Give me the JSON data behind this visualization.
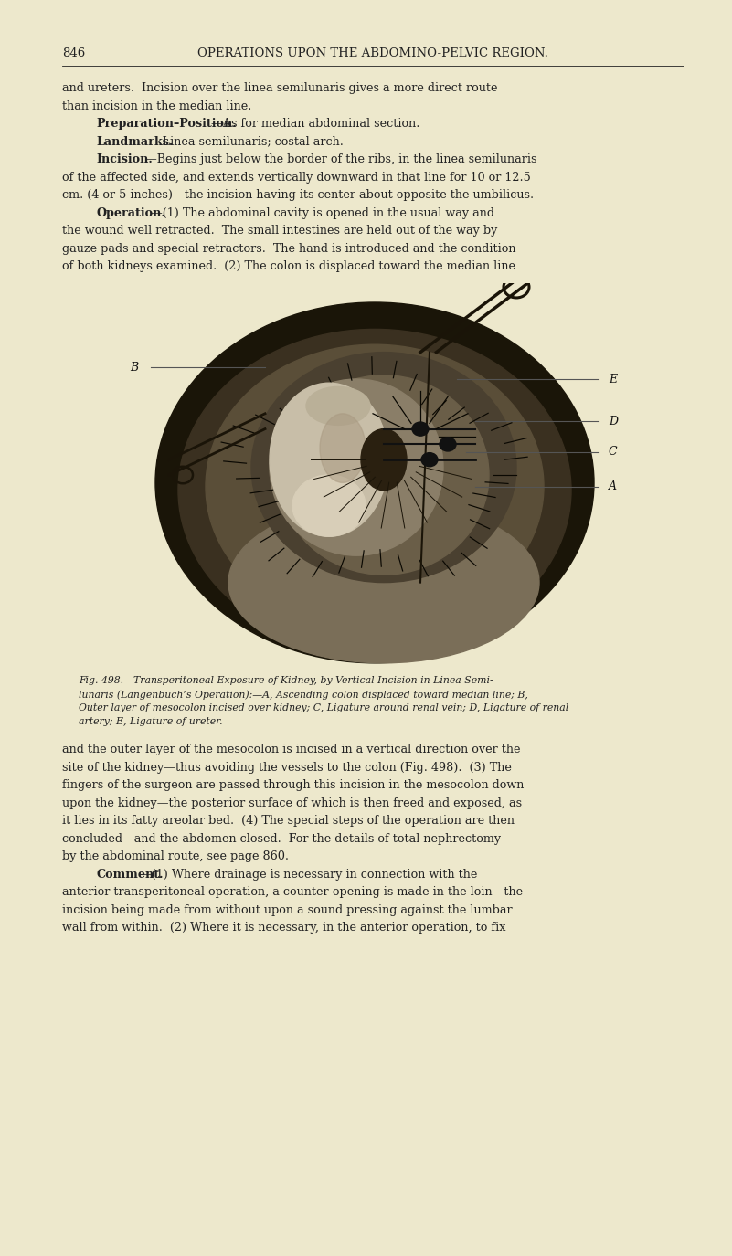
{
  "page_bg": "#ede8cc",
  "page_number": "846",
  "header_text": "OPERATIONS UPON THE ABDOMINO-PELVIC REGION.",
  "header_fontsize": 9.5,
  "body_fontsize": 9.2,
  "caption_fontsize": 7.8,
  "text_color": "#222222",
  "figsize": [
    8.01,
    13.75
  ],
  "dpi": 100,
  "top_text": [
    [
      "normal",
      "and ureters.  Incision over the linea semilunaris gives a more direct route"
    ],
    [
      "normal",
      "than incision in the median line."
    ],
    [
      "bold_start",
      "Preparation–Position.",
      "—As for median abdominal section."
    ],
    [
      "bold_start",
      "Landmarks.",
      "—Linea semilunaris; costal arch."
    ],
    [
      "bold_start",
      "Incision.",
      "—Begins just below the border of the ribs, in the linea semilunaris"
    ],
    [
      "normal",
      "of the affected side, and extends vertically downward in that line for 10 or 12.5"
    ],
    [
      "normal",
      "cm. (4 or 5 inches)—the incision having its center about opposite the umbilicus."
    ],
    [
      "bold_start",
      "Operation.",
      "—(1) The abdominal cavity is opened in the usual way and"
    ],
    [
      "normal",
      "the wound well retracted.  The small intestines are held out of the way by"
    ],
    [
      "normal",
      "gauze pads and special retractors.  The hand is introduced and the condition"
    ],
    [
      "normal",
      "of both kidneys examined.  (2) The colon is displaced toward the median line"
    ]
  ],
  "caption_lines": [
    "Fig. 498.—Transperitoneal Exposure of Kidney, by Vertical Incision in Linea Semi-",
    "lunaris (Langenbuch’s Operation):—A, Ascending colon displaced toward median line; B,",
    "Outer layer of mesocolon incised over kidney; C, Ligature around renal vein; D, Ligature of renal",
    "artery; E, Ligature of ureter."
  ],
  "bottom_text": [
    [
      "normal",
      "and the outer layer of the mesocolon is incised in a vertical direction over the"
    ],
    [
      "normal",
      "site of the kidney—thus avoiding the vessels to the colon (Fig. 498).  (3) The"
    ],
    [
      "normal",
      "fingers of the surgeon are passed through this incision in the mesocolon down"
    ],
    [
      "normal",
      "upon the kidney—the posterior surface of which is then freed and exposed, as"
    ],
    [
      "normal",
      "it lies in its fatty areolar bed.  (4) The special steps of the operation are then"
    ],
    [
      "normal",
      "concluded—and the abdomen closed.  For the details of total nephrectomy"
    ],
    [
      "normal",
      "by the abdominal route, see page 860."
    ],
    [
      "bold_start",
      "Comment.",
      "—(1) Where drainage is necessary in connection with the"
    ],
    [
      "normal",
      "anterior transperitoneal operation, a counter-opening is made in the loin—the"
    ],
    [
      "normal",
      "incision being made from without upon a sound pressing against the lumbar"
    ],
    [
      "normal",
      "wall from within.  (2) Where it is necessary, in the anterior operation, to fix"
    ]
  ]
}
